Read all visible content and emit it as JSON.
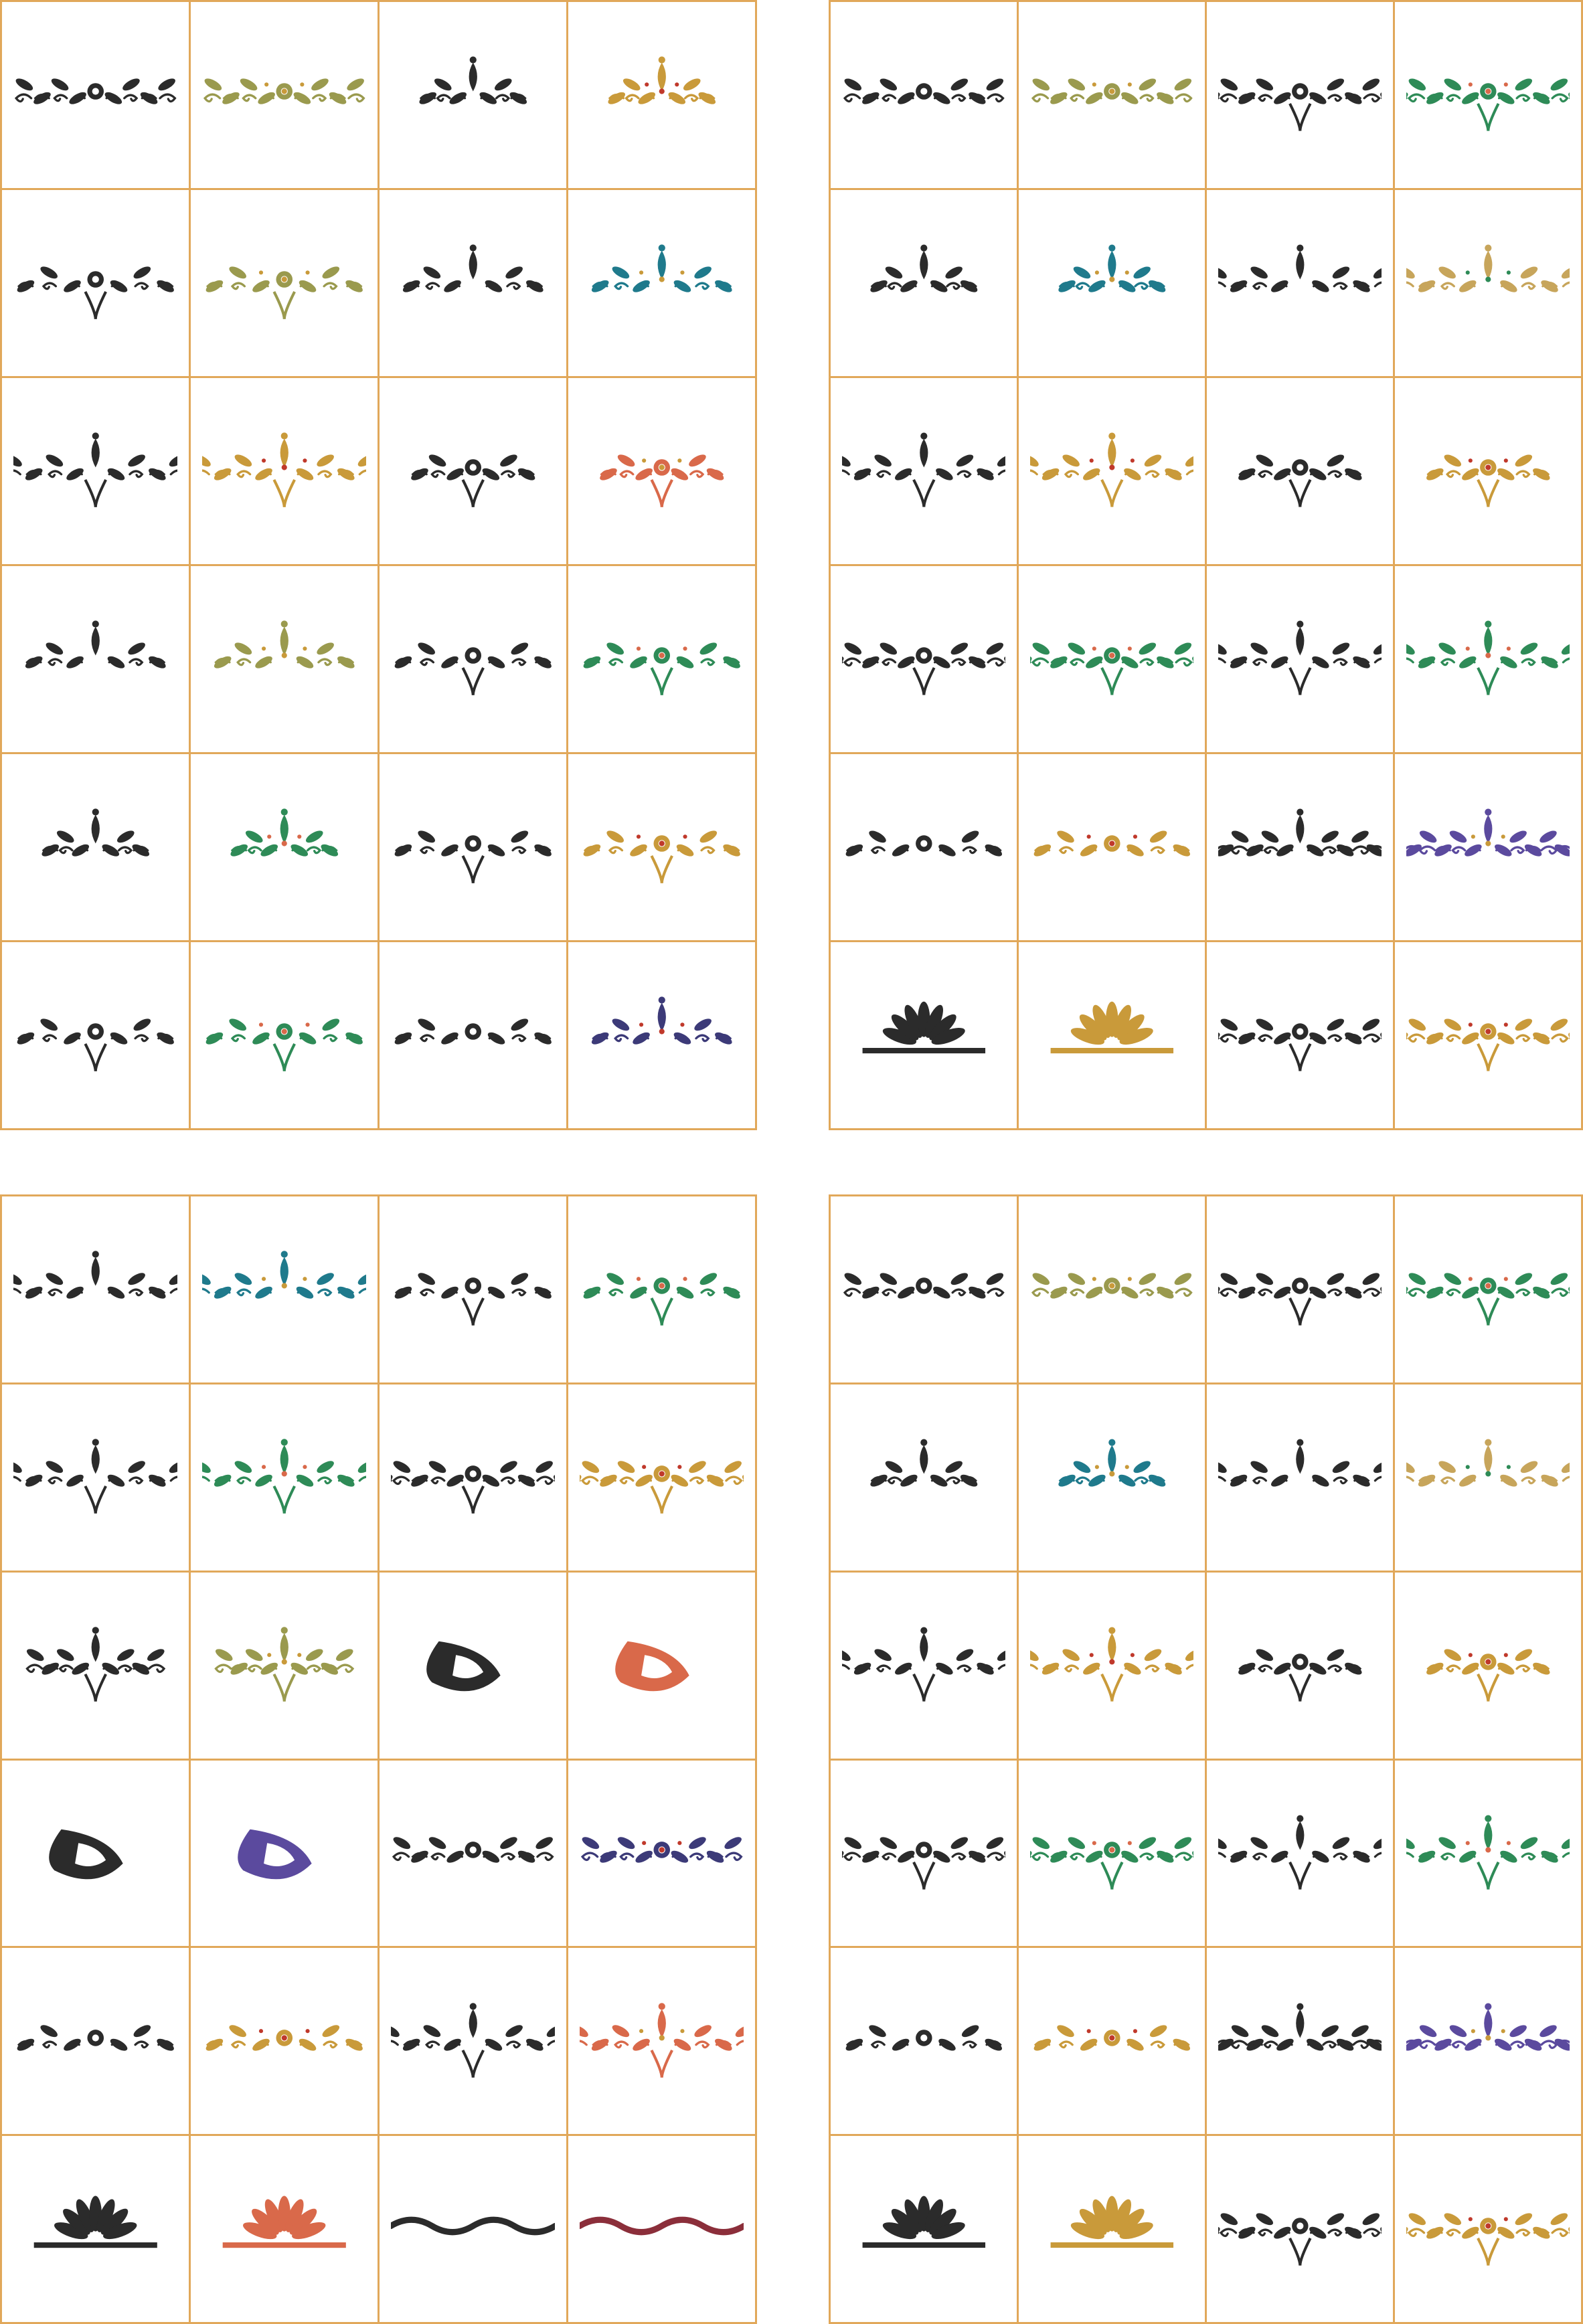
{
  "colors": {
    "grid_line": "#E1A85A",
    "ink": "#2B2B2B",
    "gold": "#C99A3A",
    "olive": "#9A9A4E",
    "green": "#2E8B57",
    "teal": "#1F7A8C",
    "red": "#C0392B",
    "purple": "#5B4A9E",
    "coral": "#D9694A",
    "maroon": "#8B2E3A",
    "navy": "#3C3A78",
    "tan": "#C7A55B"
  },
  "panels": [
    {
      "id": "top-left",
      "tiles": [
        {
          "icon": "scroll-border-ornament-icon",
          "color": "ink"
        },
        {
          "icon": "scroll-border-ornament-icon",
          "color": "olive"
        },
        {
          "icon": "leafy-flourish-icon",
          "color": "ink"
        },
        {
          "icon": "leafy-flourish-icon",
          "color": "gold"
        },
        {
          "icon": "symmetric-filigree-icon",
          "color": "ink"
        },
        {
          "icon": "symmetric-filigree-icon",
          "color": "olive"
        },
        {
          "icon": "floral-spray-icon",
          "color": "ink"
        },
        {
          "icon": "floral-spray-icon",
          "color": "teal"
        },
        {
          "icon": "vine-swirl-icon",
          "color": "ink"
        },
        {
          "icon": "vine-swirl-icon",
          "color": "gold"
        },
        {
          "icon": "baroque-medallion-icon",
          "color": "ink"
        },
        {
          "icon": "baroque-medallion-icon",
          "color": "coral"
        },
        {
          "icon": "cross-filigree-icon",
          "color": "ink"
        },
        {
          "icon": "cross-filigree-icon",
          "color": "olive"
        },
        {
          "icon": "lace-butterfly-icon",
          "color": "ink"
        },
        {
          "icon": "lace-butterfly-icon",
          "color": "green"
        },
        {
          "icon": "pendant-crest-icon",
          "color": "ink"
        },
        {
          "icon": "pendant-crest-icon",
          "color": "green"
        },
        {
          "icon": "arrow-filigree-icon",
          "color": "ink"
        },
        {
          "icon": "arrow-filigree-icon",
          "color": "gold"
        },
        {
          "icon": "maple-leaf-cluster-icon",
          "color": "ink"
        },
        {
          "icon": "maple-leaf-cluster-icon",
          "color": "green"
        },
        {
          "icon": "fountain-ornament-icon",
          "color": "ink"
        },
        {
          "icon": "flower-basket-icon",
          "color": "navy"
        }
      ]
    },
    {
      "id": "top-right",
      "tiles": [
        {
          "icon": "fleur-de-lis-crest-icon",
          "color": "ink"
        },
        {
          "icon": "fleur-de-lis-crest-icon",
          "color": "olive"
        },
        {
          "icon": "crown-arch-ornament-icon",
          "color": "ink"
        },
        {
          "icon": "crown-arch-ornament-icon",
          "color": "green"
        },
        {
          "icon": "candelabra-ornament-icon",
          "color": "ink"
        },
        {
          "icon": "candelabra-ornament-icon",
          "color": "teal"
        },
        {
          "icon": "fleur-spray-icon",
          "color": "ink"
        },
        {
          "icon": "fleur-spray-icon",
          "color": "tan"
        },
        {
          "icon": "interlace-arch-icon",
          "color": "ink"
        },
        {
          "icon": "interlace-arch-icon",
          "color": "gold"
        },
        {
          "icon": "interlace-medallion-icon",
          "color": "ink"
        },
        {
          "icon": "interlace-medallion-icon",
          "color": "gold"
        },
        {
          "icon": "lace-border-arch-icon",
          "color": "ink"
        },
        {
          "icon": "lace-border-arch-icon",
          "color": "green"
        },
        {
          "icon": "lace-border-wave-icon",
          "color": "ink"
        },
        {
          "icon": "lace-border-wave-icon",
          "color": "green"
        },
        {
          "icon": "palmette-leaf-icon",
          "color": "ink"
        },
        {
          "icon": "palmette-leaf-icon",
          "color": "gold"
        },
        {
          "icon": "ogee-medallion-icon",
          "color": "ink"
        },
        {
          "icon": "ogee-medallion-icon",
          "color": "purple"
        },
        {
          "icon": "palmette-pediment-icon",
          "color": "ink"
        },
        {
          "icon": "palmette-pediment-icon",
          "color": "gold"
        },
        {
          "icon": "lotus-finial-icon",
          "color": "ink"
        },
        {
          "icon": "lotus-finial-icon",
          "color": "gold"
        }
      ]
    },
    {
      "id": "bottom-left",
      "tiles": [
        {
          "icon": "feather-swash-icon",
          "color": "ink"
        },
        {
          "icon": "feather-swash-icon",
          "color": "teal"
        },
        {
          "icon": "garland-swirl-icon",
          "color": "ink"
        },
        {
          "icon": "garland-swirl-icon",
          "color": "green"
        },
        {
          "icon": "wave-border-icon",
          "color": "ink"
        },
        {
          "icon": "wave-border-icon",
          "color": "green"
        },
        {
          "icon": "spiral-bloom-icon",
          "color": "ink"
        },
        {
          "icon": "spiral-bloom-icon",
          "color": "gold"
        },
        {
          "icon": "oak-leaf-icon",
          "color": "ink"
        },
        {
          "icon": "oak-leaf-icon",
          "color": "olive"
        },
        {
          "icon": "crescent-swash-icon",
          "color": "ink"
        },
        {
          "icon": "crescent-swash-icon",
          "color": "coral"
        },
        {
          "icon": "paisley-icon",
          "color": "ink"
        },
        {
          "icon": "paisley-icon",
          "color": "purple"
        },
        {
          "icon": "leaf-branch-icon",
          "color": "ink"
        },
        {
          "icon": "leaf-branch-icon",
          "color": "navy"
        },
        {
          "icon": "acorn-sprig-icon",
          "color": "ink"
        },
        {
          "icon": "acorn-sprig-icon",
          "color": "gold"
        },
        {
          "icon": "heart-scroll-icon",
          "color": "ink"
        },
        {
          "icon": "heart-scroll-icon",
          "color": "coral"
        },
        {
          "icon": "shell-fan-icon",
          "color": "ink"
        },
        {
          "icon": "shell-fan-icon",
          "color": "coral"
        },
        {
          "icon": "ribbon-line-icon",
          "color": "ink"
        },
        {
          "icon": "ribbon-line-icon",
          "color": "maroon"
        }
      ]
    },
    {
      "id": "bottom-right",
      "tiles": [
        {
          "icon": "fleur-de-lis-crest-icon",
          "color": "ink"
        },
        {
          "icon": "fleur-de-lis-crest-icon",
          "color": "olive"
        },
        {
          "icon": "crown-arch-ornament-icon",
          "color": "ink"
        },
        {
          "icon": "crown-arch-ornament-icon",
          "color": "green"
        },
        {
          "icon": "candelabra-ornament-icon",
          "color": "ink"
        },
        {
          "icon": "candelabra-ornament-icon",
          "color": "teal"
        },
        {
          "icon": "fleur-spray-icon",
          "color": "ink"
        },
        {
          "icon": "fleur-spray-icon",
          "color": "tan"
        },
        {
          "icon": "interlace-arch-icon",
          "color": "ink"
        },
        {
          "icon": "interlace-arch-icon",
          "color": "gold"
        },
        {
          "icon": "interlace-medallion-icon",
          "color": "ink"
        },
        {
          "icon": "interlace-medallion-icon",
          "color": "gold"
        },
        {
          "icon": "lace-border-arch-icon",
          "color": "ink"
        },
        {
          "icon": "lace-border-arch-icon",
          "color": "green"
        },
        {
          "icon": "lace-border-wave-icon",
          "color": "ink"
        },
        {
          "icon": "lace-border-wave-icon",
          "color": "green"
        },
        {
          "icon": "palmette-leaf-icon",
          "color": "ink"
        },
        {
          "icon": "palmette-leaf-icon",
          "color": "gold"
        },
        {
          "icon": "ogee-medallion-icon",
          "color": "ink"
        },
        {
          "icon": "ogee-medallion-icon",
          "color": "purple"
        },
        {
          "icon": "palmette-pediment-icon",
          "color": "ink"
        },
        {
          "icon": "palmette-pediment-icon",
          "color": "gold"
        },
        {
          "icon": "lotus-finial-icon",
          "color": "ink"
        },
        {
          "icon": "lotus-finial-icon",
          "color": "gold"
        }
      ]
    }
  ]
}
